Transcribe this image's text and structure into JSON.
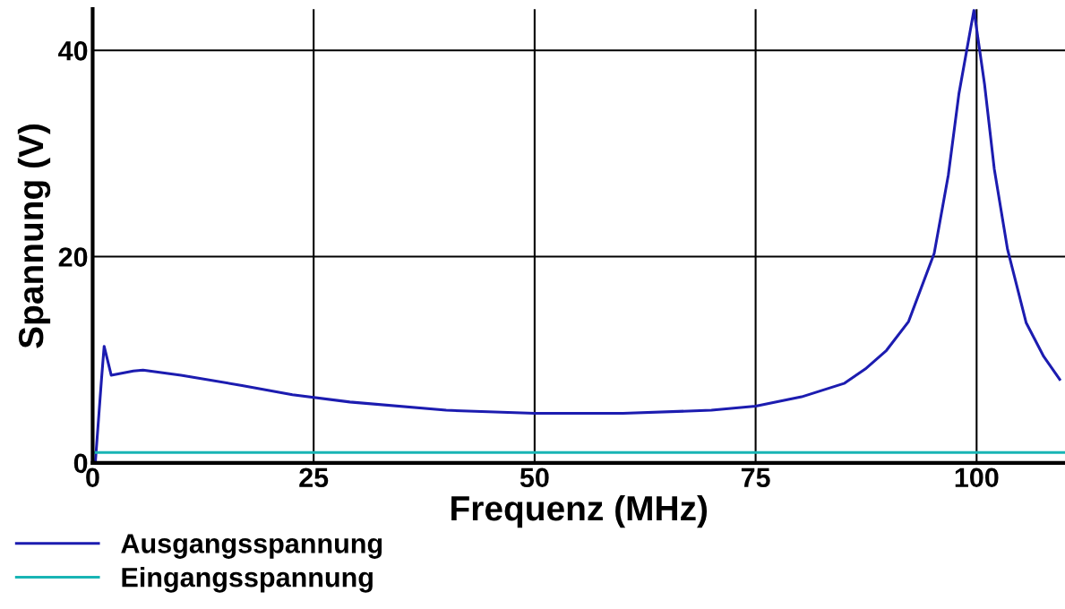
{
  "chart_data": {
    "type": "line",
    "xlabel": "Frequenz (MHz)",
    "ylabel": "Spannung (V)",
    "xlim": [
      0,
      110
    ],
    "xticks": [
      0,
      25,
      50,
      75,
      100
    ],
    "ylim": [
      0,
      44
    ],
    "yticks": [
      0,
      20,
      40
    ],
    "grid": true,
    "legend": "bottom left",
    "line_style": "solid",
    "series": [
      {
        "name": "Ausgangsspannung",
        "color": "#1c1cb0",
        "x": [
          0.3,
          1.0,
          1.3,
          2.1,
          4.6,
          5.7,
          10,
          16.9,
          22.6,
          29.1,
          40,
          50,
          60,
          70,
          75,
          80.2,
          85,
          87.4,
          89.8,
          92.3,
          95.2,
          96.8,
          98.0,
          99.7,
          100.9,
          102.0,
          103.5,
          105.6,
          107.6,
          109.4
        ],
        "values": [
          0,
          8.1,
          11.3,
          8.5,
          8.9,
          9.0,
          8.5,
          7.5,
          6.6,
          5.9,
          5.1,
          4.8,
          4.8,
          5.1,
          5.5,
          6.4,
          7.7,
          9.1,
          10.9,
          13.7,
          20.3,
          27.9,
          35.8,
          43.9,
          36.7,
          28.5,
          20.7,
          13.6,
          10.3,
          8.1
        ]
      },
      {
        "name": "Eingangsspannung",
        "color": "#18b4b4",
        "x": [
          0.3,
          110
        ],
        "values": [
          1,
          1
        ]
      }
    ]
  }
}
